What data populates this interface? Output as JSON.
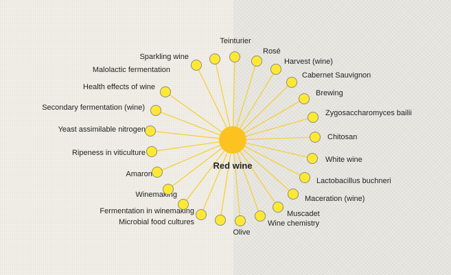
{
  "colors": {
    "node_fill": "#fde933",
    "node_stroke": "#8d8a80",
    "edge": "#f7cf3b",
    "center_fill": "#fcc21f",
    "label": "#222222"
  },
  "center": {
    "label": "Red wine"
  },
  "nodes": [
    {
      "label": "Teinturier"
    },
    {
      "label": "Rosé"
    },
    {
      "label": "Harvest (wine)"
    },
    {
      "label": "Cabernet Sauvignon"
    },
    {
      "label": "Brewing"
    },
    {
      "label": "Zygosaccharomyces bailii"
    },
    {
      "label": "Chitosan"
    },
    {
      "label": "White wine"
    },
    {
      "label": "Lactobacillus buchneri"
    },
    {
      "label": "Maceration (wine)"
    },
    {
      "label": "Muscadet"
    },
    {
      "label": "Wine chemistry"
    },
    {
      "label": "Olive"
    },
    {
      "label": "Microbial food cultures"
    },
    {
      "label": "Fermentation in winemaking"
    },
    {
      "label": "Winemaking"
    },
    {
      "label": "Amarone"
    },
    {
      "label": "Ripeness in viticulture"
    },
    {
      "label": "Yeast assimilable nitrogen"
    },
    {
      "label": "Secondary fermentation (wine)"
    },
    {
      "label": "Health effects of wine"
    },
    {
      "label": "Malolactic fermentation"
    },
    {
      "label": "Sparkling wine"
    }
  ]
}
